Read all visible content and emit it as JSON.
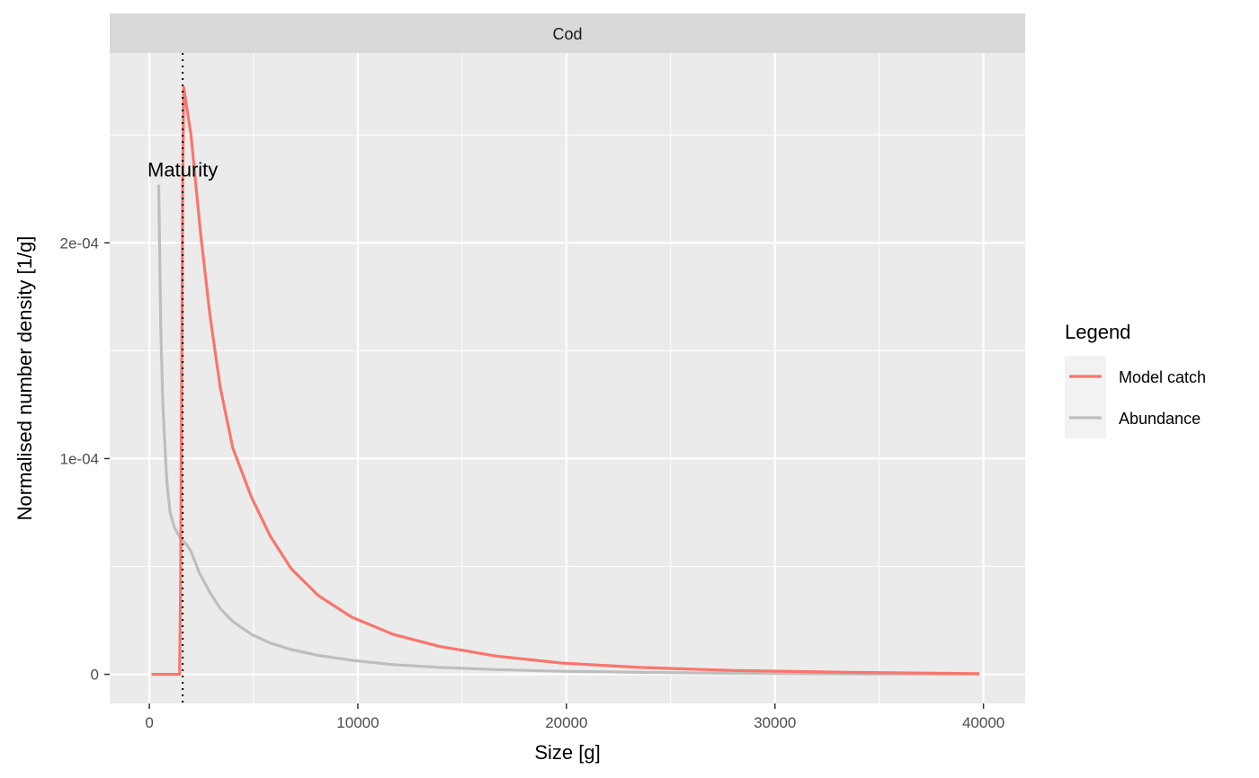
{
  "chart_data": {
    "type": "line",
    "facet_label": "Cod",
    "xlabel": "Size [g]",
    "ylabel": "Normalised number density [1/g]",
    "xlim": [
      -1900,
      42000
    ],
    "ylim": [
      -1.35e-05,
      0.000288
    ],
    "x_ticks": [
      0,
      10000,
      20000,
      30000,
      40000
    ],
    "x_tick_labels": [
      "0",
      "10000",
      "20000",
      "30000",
      "40000"
    ],
    "y_ticks": [
      0,
      0.0001,
      0.0002
    ],
    "y_tick_labels": [
      "0",
      "1e-04",
      "2e-04"
    ],
    "grid": true,
    "legend": {
      "title": "Legend",
      "position": "right",
      "entries": [
        "Model catch",
        "Abundance"
      ]
    },
    "annotation": {
      "text": "Maturity",
      "x": 1600,
      "y": 0.000234
    },
    "vline": {
      "x": 1600,
      "style": "dotted"
    },
    "series": [
      {
        "name": "Model catch",
        "color": "#f8766d",
        "x": [
          100,
          1450,
          1500,
          1600,
          1650,
          2000,
          2450,
          2900,
          3400,
          4000,
          4900,
          5800,
          6800,
          8100,
          9700,
          11700,
          13900,
          16600,
          19800,
          23500,
          28000,
          33500,
          39800
        ],
        "y": [
          0,
          0,
          4e-05,
          0.00023,
          0.000272,
          0.00025,
          0.000205,
          0.000167,
          0.000133,
          0.000105,
          8.2e-05,
          6.4e-05,
          4.9e-05,
          3.65e-05,
          2.65e-05,
          1.85e-05,
          1.3e-05,
          8.5e-06,
          5.2e-06,
          3.2e-06,
          1.8e-06,
          9e-07,
          3e-07
        ]
      },
      {
        "name": "Abundance",
        "color": "#bebebe",
        "x": [
          450,
          550,
          650,
          750,
          850,
          1000,
          1200,
          1500,
          1800,
          2000,
          2400,
          2900,
          3400,
          4000,
          4900,
          5800,
          6800,
          8100,
          9700,
          11700,
          13900,
          16600,
          19800,
          23500,
          28000,
          33500,
          39800
        ],
        "y": [
          0.000227,
          0.00016,
          0.000125,
          0.000105,
          8.8e-05,
          7.5e-05,
          6.8e-05,
          6.3e-05,
          6e-05,
          5.7e-05,
          4.7e-05,
          3.8e-05,
          3.05e-05,
          2.45e-05,
          1.85e-05,
          1.45e-05,
          1.15e-05,
          8.8e-06,
          6.5e-06,
          4.5e-06,
          3.2e-06,
          2.2e-06,
          1.4e-06,
          9e-07,
          5e-07,
          2e-07,
          1e-07
        ]
      }
    ]
  }
}
